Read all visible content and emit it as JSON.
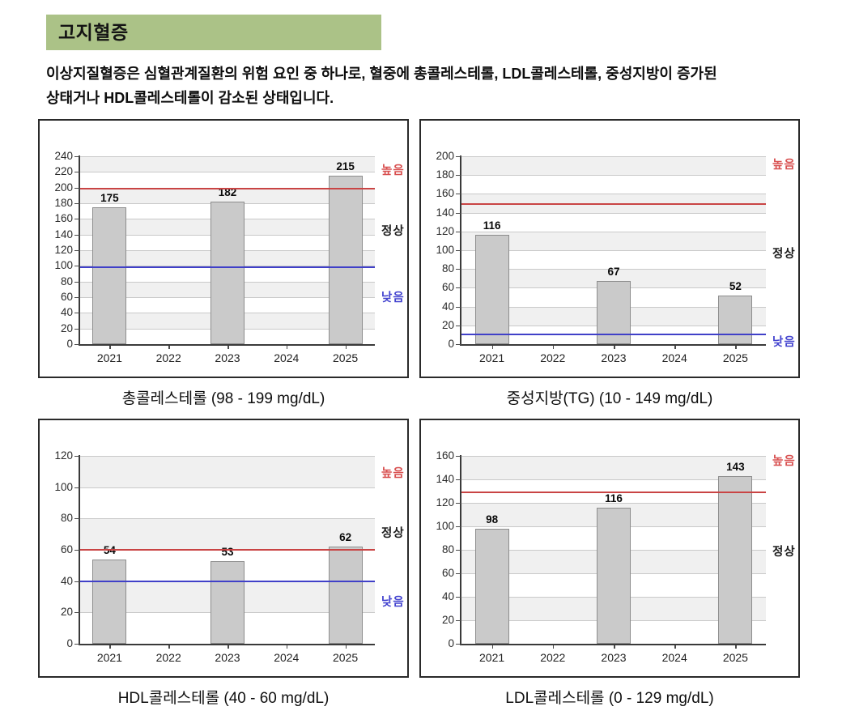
{
  "page": {
    "section_title": "고지혈증",
    "description_line1": "이상지질혈증은 심혈관계질환의 위험 요인 중 하나로, 혈중에 총콜레스테롤, LDL콜레스테롤, 중성지방이 증가된",
    "description_line2": "상태거나 HDL콜레스테롤이 감소된 상태입니다."
  },
  "zone_labels": {
    "high": "높음",
    "normal": "정상",
    "low": "낮음"
  },
  "colors": {
    "banner_green": "#abc287",
    "bar_fill": "#cacaca",
    "bar_border": "#8d8d8d",
    "stripe_gray": "#f0f0f0",
    "stripe_white": "#ffffff",
    "gridline": "#c9c9c9",
    "axis": "#3a3a3a",
    "ref_high_line": "#c94444",
    "ref_low_line": "#4040c8",
    "label_high": "#d85050",
    "label_normal": "#1c1c1c",
    "label_low": "#4343cf"
  },
  "chart_data": [
    {
      "type": "bar",
      "title": "총콜레스테롤 (98 - 199 mg/dL)",
      "categories": [
        "2021",
        "2022",
        "2023",
        "2024",
        "2025"
      ],
      "values": [
        175,
        null,
        182,
        null,
        215
      ],
      "ylim": [
        0,
        240
      ],
      "y_step": 20,
      "ref_high": 199,
      "ref_low": 98,
      "zone_anchor_high": 224,
      "zone_anchor_normal": 147,
      "zone_anchor_low": 62,
      "grid": true,
      "xlabel": "",
      "ylabel": ""
    },
    {
      "type": "bar",
      "title": "중성지방(TG) (10 - 149 mg/dL)",
      "categories": [
        "2021",
        "2022",
        "2023",
        "2024",
        "2025"
      ],
      "values": [
        116,
        null,
        67,
        null,
        52
      ],
      "ylim": [
        0,
        200
      ],
      "y_step": 20,
      "ref_high": 149,
      "ref_low": 10,
      "zone_anchor_high": 193,
      "zone_anchor_normal": 98,
      "zone_anchor_low": 4,
      "grid": true,
      "xlabel": "",
      "ylabel": ""
    },
    {
      "type": "bar",
      "title": "HDL콜레스테롤 (40 - 60 mg/dL)",
      "categories": [
        "2021",
        "2022",
        "2023",
        "2024",
        "2025"
      ],
      "values": [
        54,
        null,
        53,
        null,
        62
      ],
      "ylim": [
        0,
        120
      ],
      "y_step": 20,
      "ref_high": 60,
      "ref_low": 40,
      "zone_anchor_high": 110,
      "zone_anchor_normal": 72,
      "zone_anchor_low": 28,
      "grid": true,
      "xlabel": "",
      "ylabel": ""
    },
    {
      "type": "bar",
      "title": "LDL콜레스테롤 (0 - 129 mg/dL)",
      "categories": [
        "2021",
        "2022",
        "2023",
        "2024",
        "2025"
      ],
      "values": [
        98,
        null,
        116,
        null,
        143
      ],
      "ylim": [
        0,
        160
      ],
      "y_step": 20,
      "ref_high": 129,
      "ref_low": null,
      "zone_anchor_high": 157,
      "zone_anchor_normal": 80,
      "zone_anchor_low": null,
      "grid": true,
      "xlabel": "",
      "ylabel": ""
    }
  ]
}
